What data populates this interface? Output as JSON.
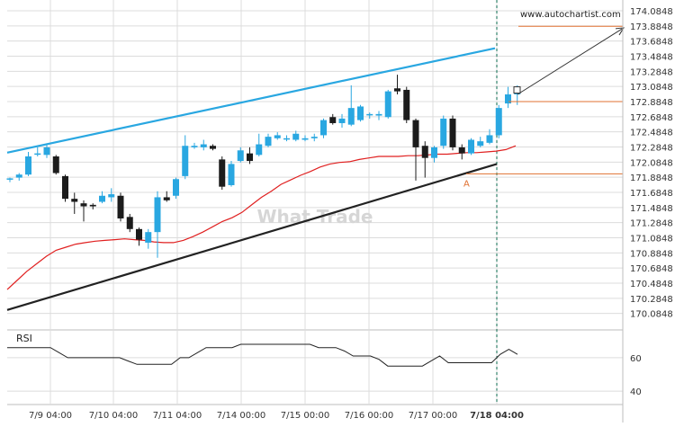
{
  "chart_data": [
    {
      "type": "candlestick",
      "series_name": "",
      "x_categories": [
        "7/9 04:00",
        "7/10 04:00",
        "7/11 04:00",
        "7/14 00:00",
        "7/15 00:00",
        "7/16 00:00",
        "7/17 00:00",
        "7/18 04:00"
      ],
      "y_ticks": [
        174.0848,
        173.8848,
        173.6848,
        173.4848,
        173.2848,
        173.0848,
        172.8848,
        172.6848,
        172.4848,
        172.2848,
        172.0848,
        171.8848,
        171.6848,
        171.4848,
        171.2848,
        171.0848,
        170.8848,
        170.6848,
        170.4848,
        170.2848,
        170.0848
      ],
      "y_range": [
        169.95,
        174.18
      ],
      "candles": [
        {
          "o": 171.86,
          "h": 171.88,
          "l": 171.82,
          "c": 171.87
        },
        {
          "o": 171.88,
          "h": 171.94,
          "l": 171.84,
          "c": 171.92
        },
        {
          "o": 171.92,
          "h": 172.22,
          "l": 171.9,
          "c": 172.16
        },
        {
          "o": 172.2,
          "h": 172.28,
          "l": 172.16,
          "c": 172.2
        },
        {
          "o": 172.18,
          "h": 172.32,
          "l": 172.14,
          "c": 172.28
        },
        {
          "o": 172.16,
          "h": 172.18,
          "l": 171.92,
          "c": 171.94
        },
        {
          "o": 171.9,
          "h": 171.92,
          "l": 171.56,
          "c": 171.6
        },
        {
          "o": 171.6,
          "h": 171.68,
          "l": 171.4,
          "c": 171.56
        },
        {
          "o": 171.54,
          "h": 171.58,
          "l": 171.3,
          "c": 171.5
        },
        {
          "o": 171.52,
          "h": 171.54,
          "l": 171.46,
          "c": 171.5
        },
        {
          "o": 171.56,
          "h": 171.7,
          "l": 171.54,
          "c": 171.64
        },
        {
          "o": 171.62,
          "h": 171.74,
          "l": 171.56,
          "c": 171.66
        },
        {
          "o": 171.64,
          "h": 171.68,
          "l": 171.3,
          "c": 171.34
        },
        {
          "o": 171.36,
          "h": 171.4,
          "l": 171.16,
          "c": 171.2
        },
        {
          "o": 171.2,
          "h": 171.22,
          "l": 170.98,
          "c": 171.06
        },
        {
          "o": 171.02,
          "h": 171.2,
          "l": 170.94,
          "c": 171.16
        },
        {
          "o": 171.16,
          "h": 171.7,
          "l": 170.82,
          "c": 171.62
        },
        {
          "o": 171.62,
          "h": 171.7,
          "l": 171.56,
          "c": 171.58
        },
        {
          "o": 171.64,
          "h": 171.88,
          "l": 171.6,
          "c": 171.86
        },
        {
          "o": 171.9,
          "h": 172.44,
          "l": 171.86,
          "c": 172.3
        },
        {
          "o": 172.28,
          "h": 172.34,
          "l": 172.26,
          "c": 172.3
        },
        {
          "o": 172.28,
          "h": 172.38,
          "l": 172.24,
          "c": 172.32
        },
        {
          "o": 172.3,
          "h": 172.32,
          "l": 172.24,
          "c": 172.26
        },
        {
          "o": 172.12,
          "h": 172.16,
          "l": 171.72,
          "c": 171.76
        },
        {
          "o": 171.78,
          "h": 172.1,
          "l": 171.76,
          "c": 172.06
        },
        {
          "o": 172.1,
          "h": 172.28,
          "l": 172.08,
          "c": 172.24
        },
        {
          "o": 172.2,
          "h": 172.28,
          "l": 172.06,
          "c": 172.1
        },
        {
          "o": 172.18,
          "h": 172.46,
          "l": 172.16,
          "c": 172.32
        },
        {
          "o": 172.3,
          "h": 172.46,
          "l": 172.28,
          "c": 172.42
        },
        {
          "o": 172.4,
          "h": 172.48,
          "l": 172.38,
          "c": 172.44
        },
        {
          "o": 172.4,
          "h": 172.44,
          "l": 172.36,
          "c": 172.4
        },
        {
          "o": 172.38,
          "h": 172.5,
          "l": 172.36,
          "c": 172.46
        },
        {
          "o": 172.38,
          "h": 172.44,
          "l": 172.36,
          "c": 172.4
        },
        {
          "o": 172.4,
          "h": 172.46,
          "l": 172.36,
          "c": 172.42
        },
        {
          "o": 172.44,
          "h": 172.66,
          "l": 172.4,
          "c": 172.64
        },
        {
          "o": 172.68,
          "h": 172.72,
          "l": 172.58,
          "c": 172.6
        },
        {
          "o": 172.6,
          "h": 172.72,
          "l": 172.54,
          "c": 172.66
        },
        {
          "o": 172.58,
          "h": 173.1,
          "l": 172.56,
          "c": 172.8
        },
        {
          "o": 172.64,
          "h": 172.84,
          "l": 172.62,
          "c": 172.82
        },
        {
          "o": 172.72,
          "h": 172.74,
          "l": 172.66,
          "c": 172.72
        },
        {
          "o": 172.7,
          "h": 172.76,
          "l": 172.64,
          "c": 172.72
        },
        {
          "o": 172.68,
          "h": 173.04,
          "l": 172.66,
          "c": 173.02
        },
        {
          "o": 173.06,
          "h": 173.24,
          "l": 172.98,
          "c": 173.02
        },
        {
          "o": 173.04,
          "h": 173.08,
          "l": 172.6,
          "c": 172.64
        },
        {
          "o": 172.64,
          "h": 172.66,
          "l": 171.84,
          "c": 172.28
        },
        {
          "o": 172.3,
          "h": 172.36,
          "l": 171.88,
          "c": 172.14
        },
        {
          "o": 172.14,
          "h": 172.3,
          "l": 172.08,
          "c": 172.28
        },
        {
          "o": 172.3,
          "h": 172.7,
          "l": 172.26,
          "c": 172.66
        },
        {
          "o": 172.66,
          "h": 172.7,
          "l": 172.24,
          "c": 172.28
        },
        {
          "o": 172.28,
          "h": 172.32,
          "l": 172.12,
          "c": 172.2
        },
        {
          "o": 172.2,
          "h": 172.4,
          "l": 172.18,
          "c": 172.38
        },
        {
          "o": 172.3,
          "h": 172.42,
          "l": 172.28,
          "c": 172.36
        },
        {
          "o": 172.34,
          "h": 172.52,
          "l": 172.32,
          "c": 172.44
        },
        {
          "o": 172.44,
          "h": 172.84,
          "l": 172.4,
          "c": 172.8
        },
        {
          "o": 172.86,
          "h": 173.08,
          "l": 172.8,
          "c": 172.98
        },
        {
          "o": 172.98,
          "h": 173.1,
          "l": 172.84,
          "c": 173.02
        }
      ],
      "moving_average": [
        170.4,
        170.52,
        170.64,
        170.74,
        170.84,
        170.92,
        170.96,
        171.0,
        171.02,
        171.04,
        171.05,
        171.06,
        171.07,
        171.06,
        171.05,
        171.03,
        171.02,
        171.02,
        171.05,
        171.1,
        171.16,
        171.23,
        171.3,
        171.35,
        171.42,
        171.52,
        171.62,
        171.7,
        171.79,
        171.85,
        171.91,
        171.96,
        172.02,
        172.06,
        172.08,
        172.09,
        172.12,
        172.14,
        172.16,
        172.16,
        172.16,
        172.17,
        172.17,
        172.18,
        172.19,
        172.19,
        172.2,
        172.21,
        172.21,
        172.22,
        172.23,
        172.25,
        172.3
      ],
      "resistance_line": {
        "start": 172.21,
        "end": 173.59
      },
      "support_line": {
        "start": 170.13,
        "end": 172.06
      },
      "level_upper": 172.8848,
      "level_lower": 171.93,
      "projection_target": 173.88,
      "pattern_label": "A",
      "rsi": {
        "label": "RSI",
        "y_ticks": [
          60,
          40
        ],
        "y_range": [
          32,
          75
        ],
        "values": [
          66,
          66,
          66,
          66,
          66,
          66,
          63,
          60,
          60,
          60,
          60,
          60,
          60,
          60,
          58,
          56,
          56,
          56,
          56,
          56,
          60,
          60,
          63,
          66,
          66,
          66,
          66,
          68,
          68,
          68,
          68,
          68,
          68,
          68,
          68,
          68,
          66,
          66,
          66,
          64,
          61,
          61,
          61,
          59,
          55,
          55,
          55,
          55,
          55,
          58,
          61,
          57,
          57,
          57,
          57,
          57,
          57,
          62,
          65,
          62
        ]
      }
    }
  ],
  "watermark": "What Trade",
  "source_text": "www.autochartist.com",
  "colors": {
    "bull": "#29a7e1",
    "bear": "#1c1c1c",
    "resistance": "#29a7e1",
    "support": "#222222",
    "ma": "#e02020",
    "level": "#e07030",
    "grid": "#dcdcdc"
  }
}
